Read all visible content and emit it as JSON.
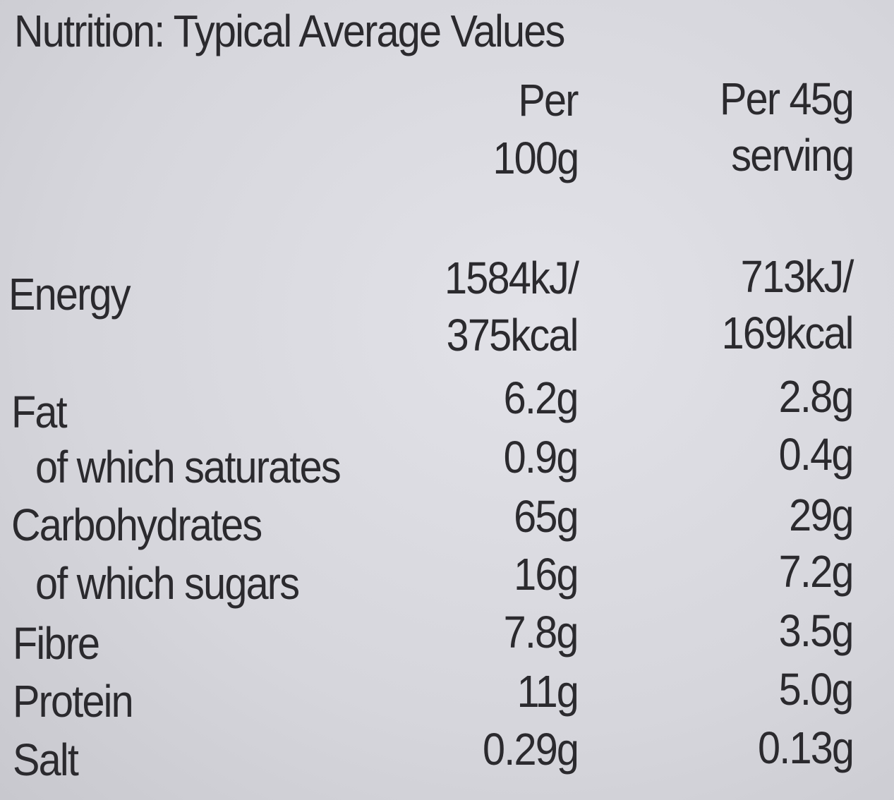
{
  "title": "Nutrition: Typical Average Values",
  "columns": {
    "per100_line1": "Per",
    "per100_line2": "100g",
    "serving_line1": "Per 45g",
    "serving_line2": "serving"
  },
  "rows": [
    {
      "label": "Energy",
      "per100": [
        "1584kJ/",
        "375kcal"
      ],
      "serving": [
        "713kJ/",
        "169kcal"
      ]
    },
    {
      "label": "Fat",
      "per100": "6.2g",
      "serving": "2.8g"
    },
    {
      "label": "of which saturates",
      "per100": "0.9g",
      "serving": "0.4g"
    },
    {
      "label": "Carbohydrates",
      "per100": "65g",
      "serving": "29g"
    },
    {
      "label": "of which sugars",
      "per100": "16g",
      "serving": "7.2g"
    },
    {
      "label": "Fibre",
      "per100": "7.8g",
      "serving": "3.5g"
    },
    {
      "label": "Protein",
      "per100": "11g",
      "serving": "5.0g"
    },
    {
      "label": "Salt",
      "per100": "0.29g",
      "serving": "0.13g"
    }
  ]
}
